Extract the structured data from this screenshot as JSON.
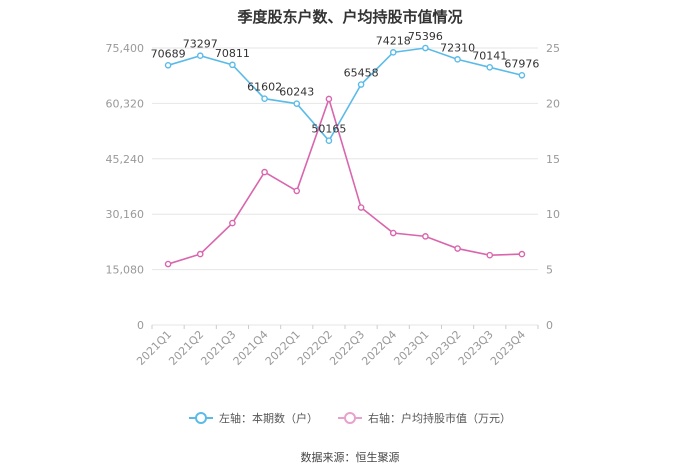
{
  "title": "季度股东户数、户均持股市值情况",
  "source": "数据来源：恒生聚源",
  "colors": {
    "left_series": "#5bbbe8",
    "right_series": "#d966ad",
    "grid": "#e6e6e6",
    "tick": "#999999"
  },
  "chart_data": {
    "type": "line",
    "title": "季度股东户数、户均持股市值情况",
    "categories": [
      "2021Q1",
      "2021Q2",
      "2021Q3",
      "2021Q4",
      "2022Q1",
      "2022Q2",
      "2022Q3",
      "2022Q4",
      "2023Q1",
      "2023Q2",
      "2023Q3",
      "2023Q4"
    ],
    "y_left": {
      "ticks": [
        "0",
        "15,080",
        "30,160",
        "45,240",
        "60,320",
        "75,400"
      ],
      "range": [
        0,
        75400
      ]
    },
    "y_right": {
      "ticks": [
        "0",
        "5",
        "10",
        "15",
        "20",
        "25"
      ],
      "range": [
        0,
        25
      ]
    },
    "grid": true,
    "legend_position": "bottom",
    "series": [
      {
        "name": "左轴：本期数（户）",
        "axis": "left",
        "color": "#5bbbe8",
        "values": [
          70689,
          73297,
          70811,
          61602,
          60243,
          50165,
          65458,
          74218,
          75396,
          72310,
          70141,
          67976
        ],
        "labels": [
          "70689",
          "73297",
          "70811",
          "61602",
          "60243",
          "50165",
          "65458",
          "74218",
          "75396",
          "72310",
          "70141",
          "67976"
        ]
      },
      {
        "name": "右轴：户均持股市值（万元）",
        "axis": "right",
        "color": "#d966ad",
        "values": [
          5.5,
          6.4,
          9.2,
          13.8,
          12.1,
          20.4,
          10.6,
          8.3,
          8.0,
          6.9,
          6.3,
          6.4
        ]
      }
    ]
  }
}
